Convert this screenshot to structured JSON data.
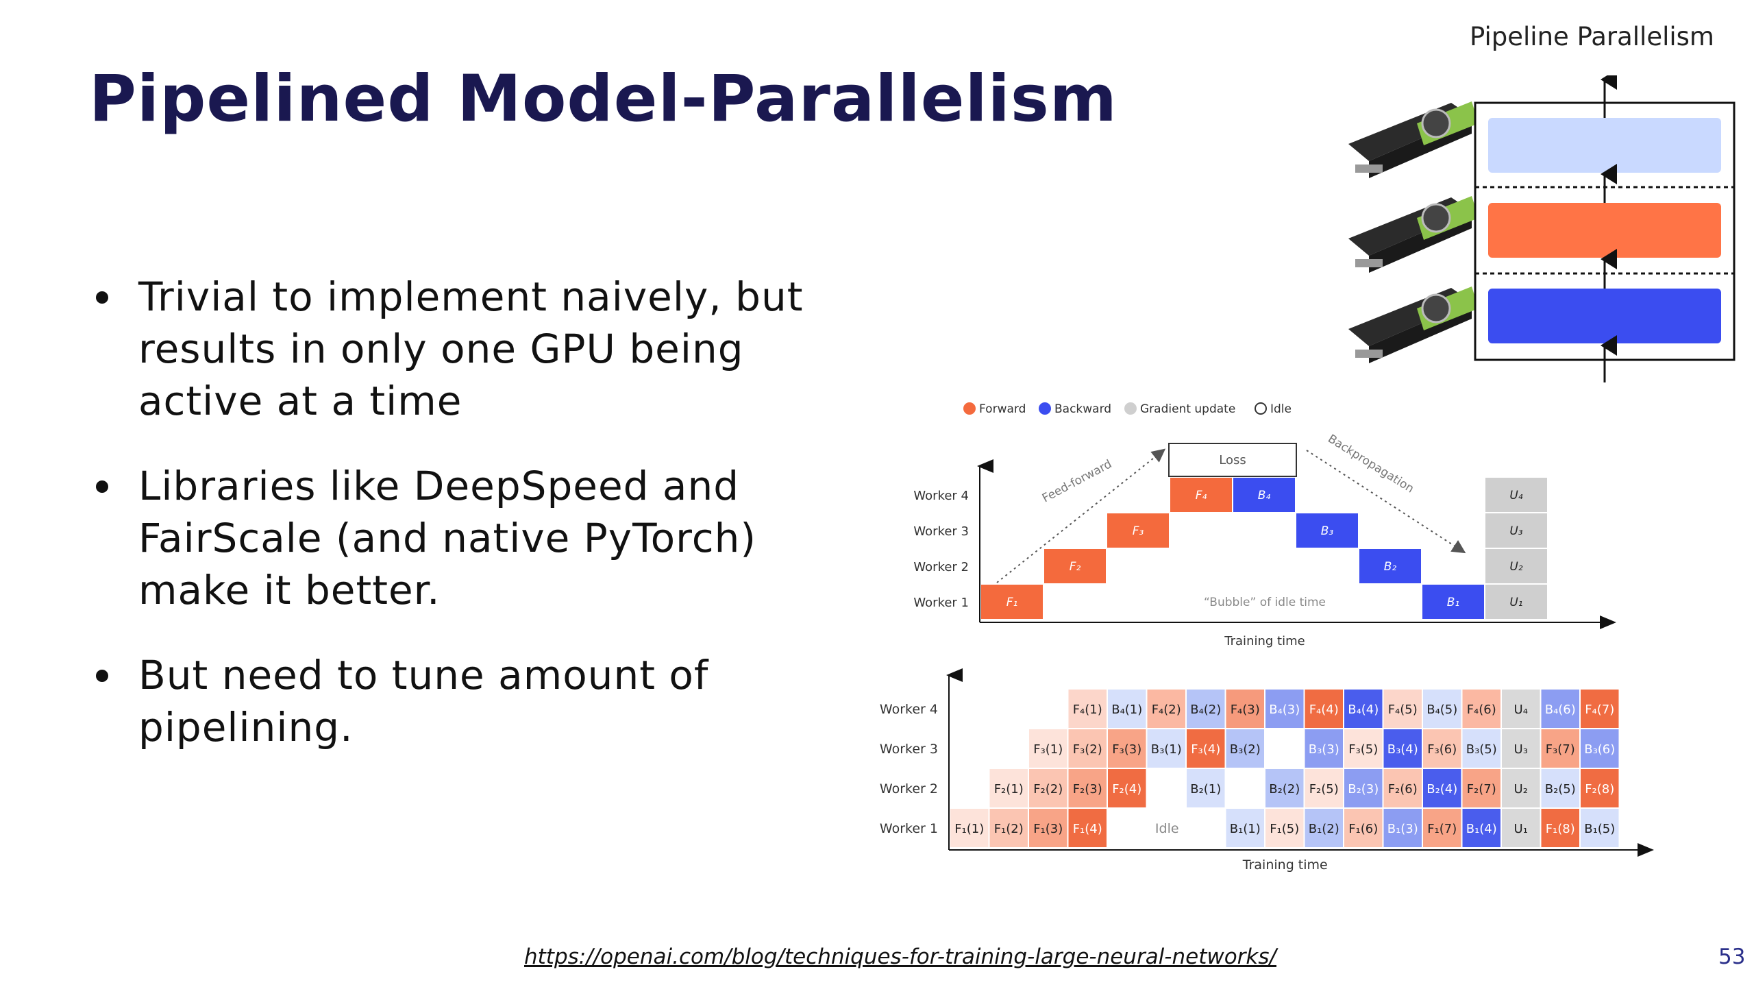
{
  "slide": {
    "title": "Pipelined Model-Parallelism",
    "bullets": [
      "Trivial to implement naively, but results in only one GPU being active at a time",
      "Libraries like DeepSpeed and FairScale (and native PyTorch) make it better.",
      "But need to tune amount of pipelining."
    ],
    "link": "https://openai.com/blog/techniques-for-training-large-neural-networks/",
    "page_number": "53"
  },
  "pipeline_diagram": {
    "title": "Pipeline Parallelism",
    "layer_colors": [
      "#c9d9ff",
      "#ff7446",
      "#3b4df0"
    ]
  },
  "legend": {
    "items": [
      {
        "label": "Forward",
        "color": "#f46a3d"
      },
      {
        "label": "Backward",
        "color": "#3b4df0"
      },
      {
        "label": "Gradient update",
        "color": "#cfcfcf"
      },
      {
        "label": "Idle",
        "color": "#ffffff"
      }
    ]
  },
  "naive_chart": {
    "workers": [
      "Worker 4",
      "Worker 3",
      "Worker 2",
      "Worker 1"
    ],
    "loss_label": "Loss",
    "feedforward_label": "Feed-forward",
    "backprop_label": "Backpropagation",
    "bubble_label": "“Bubble” of idle time",
    "xlabel": "Training time",
    "forward": [
      "F₁",
      "F₂",
      "F₃",
      "F₄"
    ],
    "backward": [
      "B₄",
      "B₃",
      "B₂",
      "B₁"
    ],
    "updates": [
      "U₄",
      "U₃",
      "U₂",
      "U₁"
    ]
  },
  "gpipe_chart": {
    "workers": [
      "Worker 4",
      "Worker 3",
      "Worker 2",
      "Worker 1"
    ],
    "idle_label": "Idle",
    "xlabel": "Training time",
    "rows": [
      [
        {
          "col": 3,
          "text": "F₄(1)",
          "color": "#fcd6ca"
        },
        {
          "col": 4,
          "text": "B₄(1)",
          "color": "#d6e0fb"
        },
        {
          "col": 5,
          "text": "F₄(2)",
          "color": "#fbb8a2"
        },
        {
          "col": 6,
          "text": "B₄(2)",
          "color": "#b5c4f7"
        },
        {
          "col": 7,
          "text": "F₄(3)",
          "color": "#f69a7c"
        },
        {
          "col": 8,
          "text": "B₄(3)",
          "color": "#8c9df2"
        },
        {
          "col": 9,
          "text": "F₄(4)",
          "color": "#f06c42"
        },
        {
          "col": 10,
          "text": "B₄(4)",
          "color": "#4a5ded"
        },
        {
          "col": 11,
          "text": "F₄(5)",
          "color": "#fcd6ca"
        },
        {
          "col": 12,
          "text": "B₄(5)",
          "color": "#d6e0fb"
        },
        {
          "col": 13,
          "text": "F₄(6)",
          "color": "#fbb8a2"
        },
        {
          "col": 14,
          "text": "U₄",
          "color": "#d9d9d9"
        },
        {
          "col": 15,
          "text": "B₄(6)",
          "color": "#8c9df2"
        },
        {
          "col": 16,
          "text": "F₄(7)",
          "color": "#f06c42"
        }
      ],
      [
        {
          "col": 2,
          "text": "F₃(1)",
          "color": "#fde3da"
        },
        {
          "col": 3,
          "text": "F₃(2)",
          "color": "#fbc5b2"
        },
        {
          "col": 4,
          "text": "F₃(3)",
          "color": "#f8a487"
        },
        {
          "col": 5,
          "text": "B₃(1)",
          "color": "#d6e0fb"
        },
        {
          "col": 6,
          "text": "F₃(4)",
          "color": "#f06c42"
        },
        {
          "col": 7,
          "text": "B₃(2)",
          "color": "#b5c4f7"
        },
        {
          "col": 9,
          "text": "B₃(3)",
          "color": "#8c9df2"
        },
        {
          "col": 10,
          "text": "F₃(5)",
          "color": "#fde3da"
        },
        {
          "col": 11,
          "text": "B₃(4)",
          "color": "#4a5ded"
        },
        {
          "col": 12,
          "text": "F₃(6)",
          "color": "#fbc5b2"
        },
        {
          "col": 13,
          "text": "B₃(5)",
          "color": "#d6e0fb"
        },
        {
          "col": 14,
          "text": "U₃",
          "color": "#d9d9d9"
        },
        {
          "col": 15,
          "text": "F₃(7)",
          "color": "#f8a487"
        },
        {
          "col": 16,
          "text": "B₃(6)",
          "color": "#8c9df2"
        }
      ],
      [
        {
          "col": 1,
          "text": "F₂(1)",
          "color": "#fde3da"
        },
        {
          "col": 2,
          "text": "F₂(2)",
          "color": "#fbc5b2"
        },
        {
          "col": 3,
          "text": "F₂(3)",
          "color": "#f8a487"
        },
        {
          "col": 4,
          "text": "F₂(4)",
          "color": "#f06c42"
        },
        {
          "col": 6,
          "text": "B₂(1)",
          "color": "#d6e0fb"
        },
        {
          "col": 8,
          "text": "B₂(2)",
          "color": "#b5c4f7"
        },
        {
          "col": 9,
          "text": "F₂(5)",
          "color": "#fde3da"
        },
        {
          "col": 10,
          "text": "B₂(3)",
          "color": "#8c9df2"
        },
        {
          "col": 11,
          "text": "F₂(6)",
          "color": "#fbc5b2"
        },
        {
          "col": 12,
          "text": "B₂(4)",
          "color": "#4a5ded"
        },
        {
          "col": 13,
          "text": "F₂(7)",
          "color": "#f8a487"
        },
        {
          "col": 14,
          "text": "U₂",
          "color": "#d9d9d9"
        },
        {
          "col": 15,
          "text": "B₂(5)",
          "color": "#d6e0fb"
        },
        {
          "col": 16,
          "text": "F₂(8)",
          "color": "#f06c42"
        }
      ],
      [
        {
          "col": 0,
          "text": "F₁(1)",
          "color": "#fde3da"
        },
        {
          "col": 1,
          "text": "F₁(2)",
          "color": "#fbc5b2"
        },
        {
          "col": 2,
          "text": "F₁(3)",
          "color": "#f8a487"
        },
        {
          "col": 3,
          "text": "F₁(4)",
          "color": "#f06c42"
        },
        {
          "col": 7,
          "text": "B₁(1)",
          "color": "#d6e0fb"
        },
        {
          "col": 8,
          "text": "F₁(5)",
          "color": "#fde3da"
        },
        {
          "col": 9,
          "text": "B₁(2)",
          "color": "#b5c4f7"
        },
        {
          "col": 10,
          "text": "F₁(6)",
          "color": "#fbc5b2"
        },
        {
          "col": 11,
          "text": "B₁(3)",
          "color": "#8c9df2"
        },
        {
          "col": 12,
          "text": "F₁(7)",
          "color": "#f8a487"
        },
        {
          "col": 13,
          "text": "B₁(4)",
          "color": "#4a5ded"
        },
        {
          "col": 14,
          "text": "U₁",
          "color": "#d9d9d9"
        },
        {
          "col": 15,
          "text": "F₁(8)",
          "color": "#f06c42"
        },
        {
          "col": 16,
          "text": "B₁(5)",
          "color": "#d6e0fb"
        }
      ]
    ]
  }
}
